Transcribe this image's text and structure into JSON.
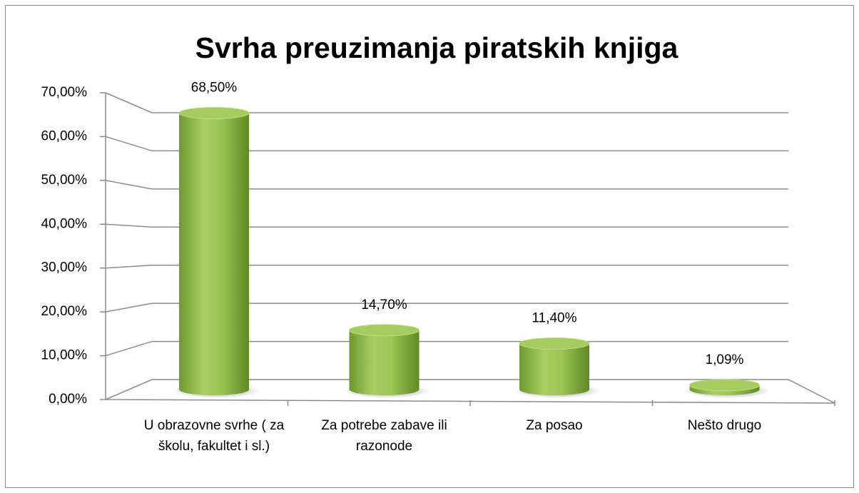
{
  "chart_data": {
    "type": "bar",
    "title": "Svrha preuzimanja piratskih knjiga",
    "categories": [
      "U obrazovne svrhe ( za školu, fakultet i sl.)",
      "Za potrebe zabave ili razonode",
      "Za posao",
      "Nešto drugo"
    ],
    "values": [
      68.5,
      14.7,
      11.4,
      1.09
    ],
    "value_labels": [
      "68,50%",
      "14,70%",
      "11,40%",
      "1,09%"
    ],
    "color": "#8cb847",
    "ylim": [
      0,
      70
    ],
    "yticks": [
      {
        "value": 0,
        "label": "0,00%"
      },
      {
        "value": 10,
        "label": "10,00%"
      },
      {
        "value": 20,
        "label": "20,00%"
      },
      {
        "value": 30,
        "label": "30,00%"
      },
      {
        "value": 40,
        "label": "40,00%"
      },
      {
        "value": 50,
        "label": "50,00%"
      },
      {
        "value": 60,
        "label": "60,00%"
      },
      {
        "value": 70,
        "label": "70,00%"
      }
    ],
    "grid": true
  }
}
